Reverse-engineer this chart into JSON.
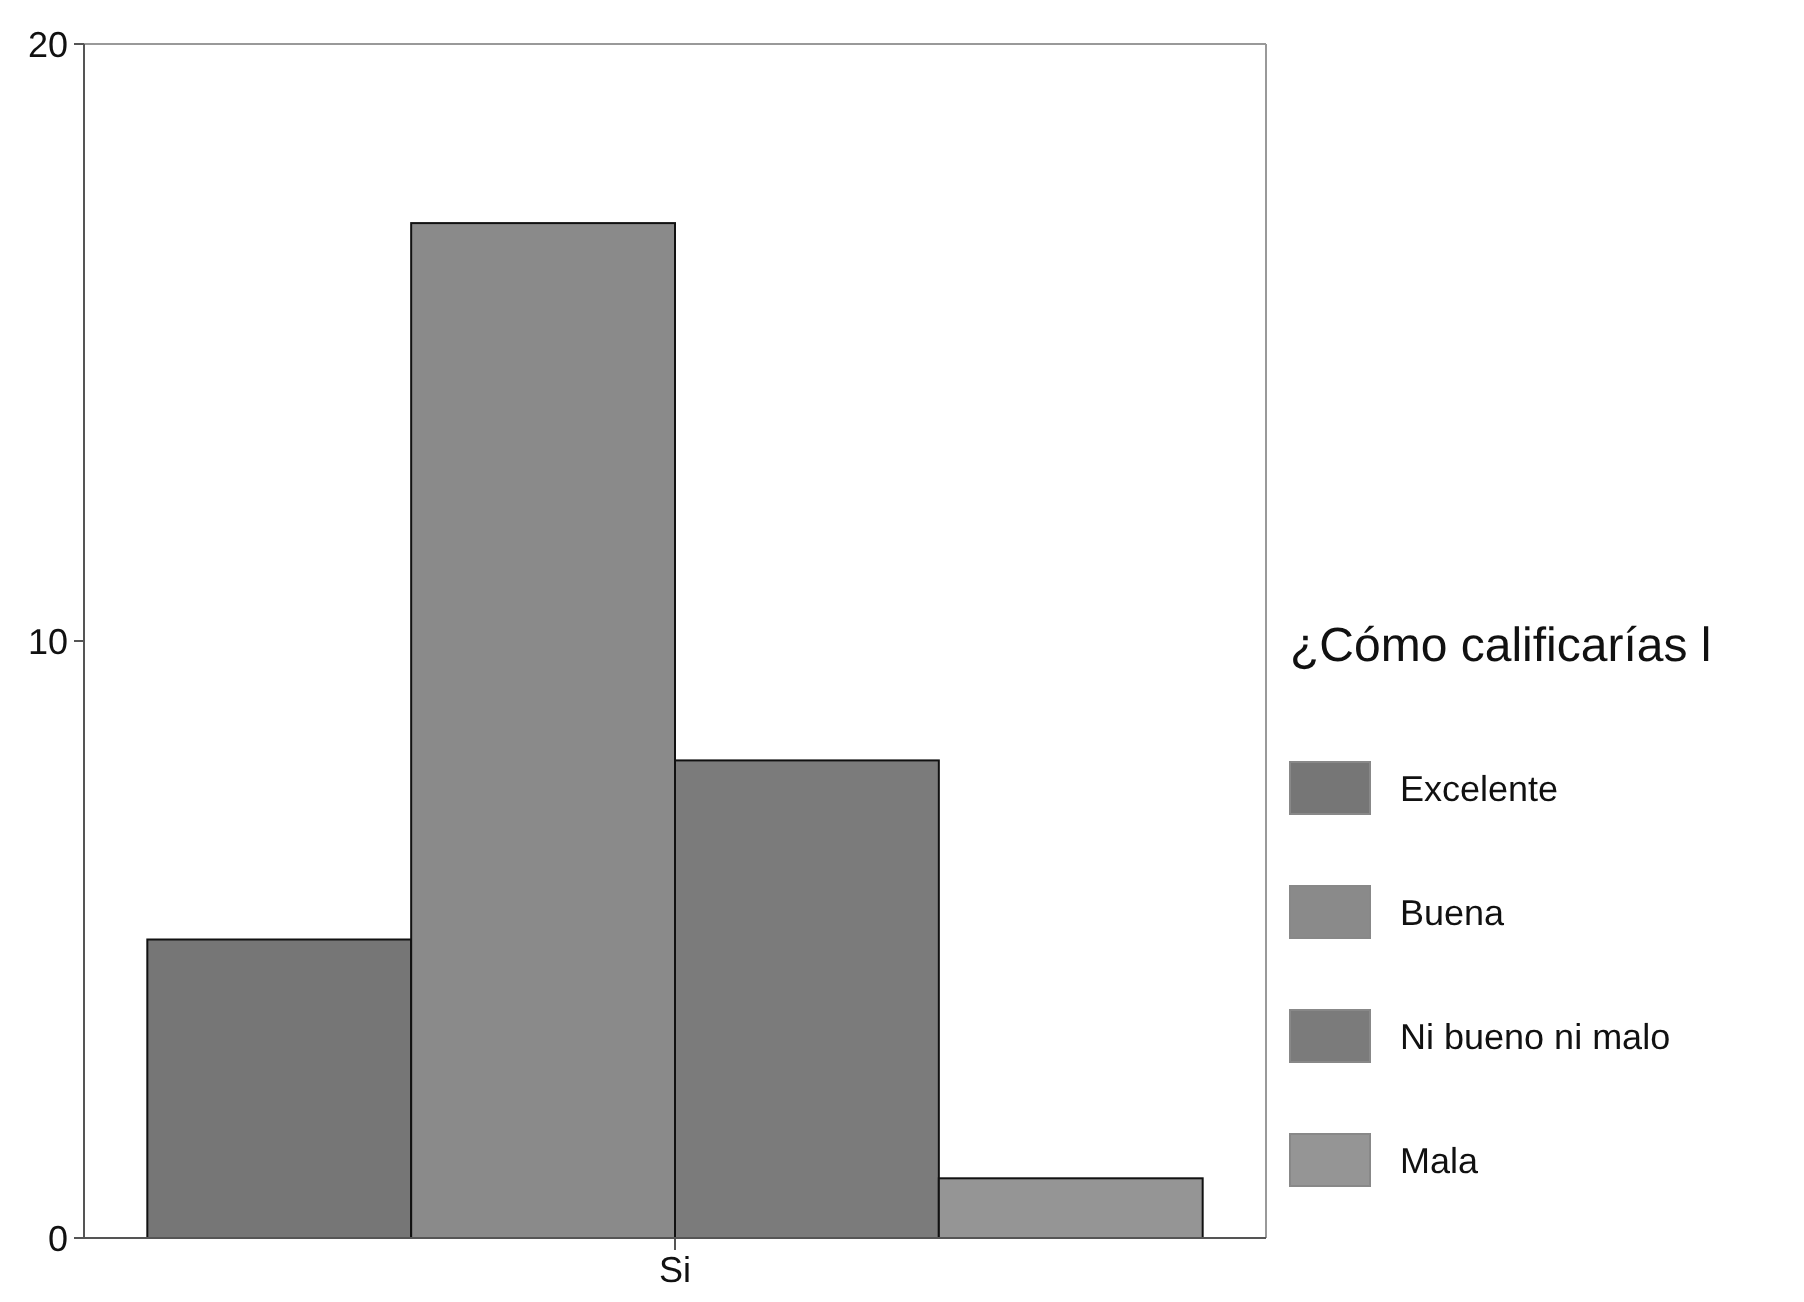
{
  "chart_data": {
    "type": "bar",
    "categories": [
      "Si"
    ],
    "series": [
      {
        "name": "Excelente",
        "color": "#767676",
        "values": [
          5
        ]
      },
      {
        "name": "Buena",
        "color": "#8a8a8a",
        "values": [
          17
        ]
      },
      {
        "name": "Ni bueno ni malo",
        "color": "#7b7b7b",
        "values": [
          8
        ]
      },
      {
        "name": "Mala",
        "color": "#959595",
        "values": [
          1
        ]
      }
    ],
    "ylim": [
      0,
      20
    ],
    "yticks": [
      0,
      10,
      20
    ],
    "grid": false,
    "legend": "right",
    "legend_title": "¿Cómo calificarías l"
  }
}
